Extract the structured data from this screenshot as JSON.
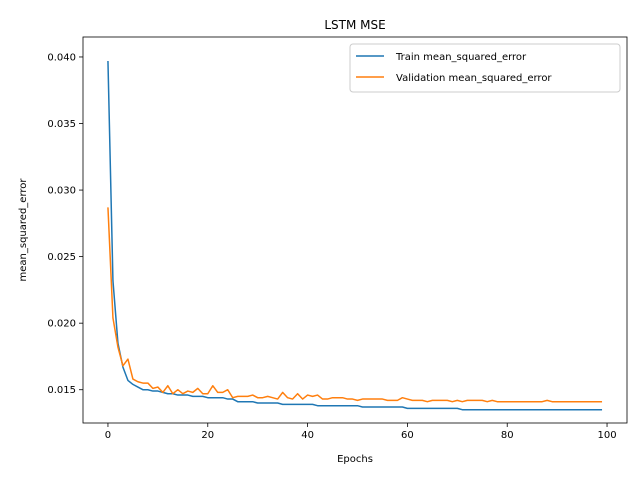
{
  "chart_data": {
    "type": "line",
    "title": "LSTM MSE",
    "xlabel": "Epochs",
    "ylabel": "mean_squared_error",
    "xlim": [
      -5,
      104
    ],
    "ylim": [
      0.0125,
      0.0415
    ],
    "xticks": [
      0,
      20,
      40,
      60,
      80,
      100
    ],
    "yticks": [
      0.015,
      0.02,
      0.025,
      0.03,
      0.035,
      0.04
    ],
    "xtick_labels": [
      "0",
      "20",
      "40",
      "60",
      "80",
      "100"
    ],
    "ytick_labels": [
      "0.015",
      "0.020",
      "0.025",
      "0.030",
      "0.035",
      "0.040"
    ],
    "legend_position": "top-right",
    "grid": false,
    "series": [
      {
        "name": "Train mean_squared_error",
        "color": "#1f77b4",
        "values": [
          0.0397,
          0.0232,
          0.0185,
          0.0167,
          0.0157,
          0.0154,
          0.0152,
          0.015,
          0.015,
          0.0149,
          0.0149,
          0.0148,
          0.0147,
          0.0147,
          0.0146,
          0.0146,
          0.0146,
          0.0145,
          0.0145,
          0.0145,
          0.0144,
          0.0144,
          0.0144,
          0.0144,
          0.0143,
          0.0143,
          0.0141,
          0.0141,
          0.0141,
          0.0141,
          0.014,
          0.014,
          0.014,
          0.014,
          0.014,
          0.0139,
          0.0139,
          0.0139,
          0.0139,
          0.0139,
          0.0139,
          0.0139,
          0.0138,
          0.0138,
          0.0138,
          0.0138,
          0.0138,
          0.0138,
          0.0138,
          0.0138,
          0.0138,
          0.0137,
          0.0137,
          0.0137,
          0.0137,
          0.0137,
          0.0137,
          0.0137,
          0.0137,
          0.0137,
          0.0136,
          0.0136,
          0.0136,
          0.0136,
          0.0136,
          0.0136,
          0.0136,
          0.0136,
          0.0136,
          0.0136,
          0.0136,
          0.0135,
          0.0135,
          0.0135,
          0.0135,
          0.0135,
          0.0135,
          0.0135,
          0.0135,
          0.0135,
          0.0135,
          0.0135,
          0.0135,
          0.0135,
          0.0135,
          0.0135,
          0.0135,
          0.0135,
          0.0135,
          0.0135,
          0.0135,
          0.0135,
          0.0135,
          0.0135,
          0.0135,
          0.0135,
          0.0135,
          0.0135,
          0.0135,
          0.0135
        ]
      },
      {
        "name": "Validation mean_squared_error",
        "color": "#ff7f0e",
        "values": [
          0.0287,
          0.0204,
          0.0182,
          0.0168,
          0.0173,
          0.0158,
          0.0156,
          0.0155,
          0.0155,
          0.0151,
          0.0152,
          0.0148,
          0.0153,
          0.0147,
          0.015,
          0.0147,
          0.0149,
          0.0148,
          0.0151,
          0.0147,
          0.0147,
          0.0153,
          0.0148,
          0.0148,
          0.015,
          0.0144,
          0.0145,
          0.0145,
          0.0145,
          0.0146,
          0.0144,
          0.0144,
          0.0145,
          0.0144,
          0.0143,
          0.0148,
          0.0144,
          0.0143,
          0.0147,
          0.0143,
          0.0146,
          0.0145,
          0.0146,
          0.0143,
          0.0143,
          0.0144,
          0.0144,
          0.0144,
          0.0143,
          0.0143,
          0.0142,
          0.0143,
          0.0143,
          0.0143,
          0.0143,
          0.0143,
          0.0142,
          0.0142,
          0.0142,
          0.0144,
          0.0143,
          0.0142,
          0.0142,
          0.0142,
          0.0141,
          0.0142,
          0.0142,
          0.0142,
          0.0142,
          0.0141,
          0.0142,
          0.0141,
          0.0142,
          0.0142,
          0.0142,
          0.0142,
          0.0141,
          0.0142,
          0.0141,
          0.0141,
          0.0141,
          0.0141,
          0.0141,
          0.0141,
          0.0141,
          0.0141,
          0.0141,
          0.0141,
          0.0142,
          0.0141,
          0.0141,
          0.0141,
          0.0141,
          0.0141,
          0.0141,
          0.0141,
          0.0141,
          0.0141,
          0.0141,
          0.0141
        ]
      }
    ]
  }
}
